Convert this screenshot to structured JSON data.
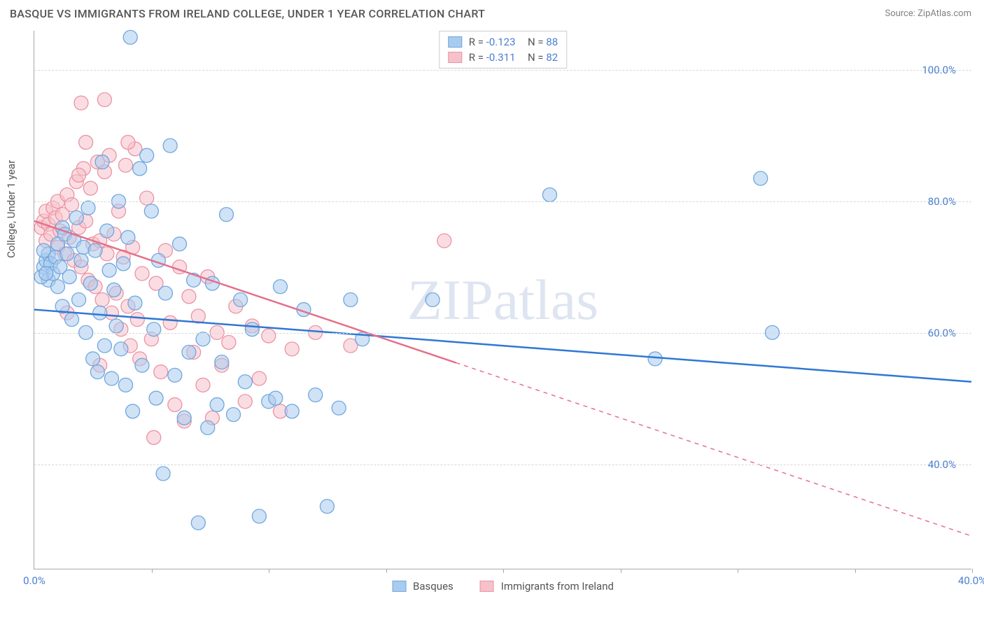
{
  "header": {
    "title": "BASQUE VS IMMIGRANTS FROM IRELAND COLLEGE, UNDER 1 YEAR CORRELATION CHART",
    "source": "Source: ZipAtlas.com"
  },
  "watermark": {
    "zip": "ZIP",
    "atlas": "atlas"
  },
  "axes": {
    "ylabel": "College, Under 1 year",
    "xlim": [
      0,
      40
    ],
    "ylim": [
      24,
      106
    ],
    "yticks": [
      {
        "v": 40,
        "label": "40.0%"
      },
      {
        "v": 60,
        "label": "60.0%"
      },
      {
        "v": 80,
        "label": "80.0%"
      },
      {
        "v": 100,
        "label": "100.0%"
      }
    ],
    "xtick_positions": [
      0,
      5,
      10,
      15,
      20,
      25,
      30,
      35,
      40
    ],
    "xtick_labels": [
      {
        "v": 0,
        "label": "0.0%"
      },
      {
        "v": 40,
        "label": "40.0%"
      }
    ],
    "grid_color": "#d8d8d8",
    "axis_color": "#a8a8a8"
  },
  "series": {
    "basques": {
      "name": "Basques",
      "color_fill": "#a9cbee",
      "color_stroke": "#6fa7dd",
      "line_color": "#2f78d4",
      "marker_r": 10,
      "marker_opacity": 0.55,
      "R": "-0.123",
      "N": "88",
      "trend": {
        "x1": 0,
        "y1": 63.5,
        "x2": 40,
        "y2": 52.5,
        "solid_until_x": 40
      },
      "points": [
        [
          0.4,
          70
        ],
        [
          0.5,
          71
        ],
        [
          0.6,
          72
        ],
        [
          0.6,
          68
        ],
        [
          0.7,
          70.5
        ],
        [
          0.8,
          69
        ],
        [
          0.9,
          71.5
        ],
        [
          1.0,
          67
        ],
        [
          1.0,
          73.5
        ],
        [
          1.1,
          70
        ],
        [
          1.2,
          76
        ],
        [
          1.2,
          64
        ],
        [
          1.3,
          75
        ],
        [
          1.4,
          72
        ],
        [
          1.5,
          68.5
        ],
        [
          1.6,
          62
        ],
        [
          1.7,
          74
        ],
        [
          1.8,
          77.5
        ],
        [
          1.9,
          65
        ],
        [
          2.0,
          71
        ],
        [
          2.1,
          73
        ],
        [
          2.2,
          60
        ],
        [
          2.3,
          79
        ],
        [
          2.4,
          67.5
        ],
        [
          2.5,
          56
        ],
        [
          2.6,
          72.5
        ],
        [
          2.7,
          54
        ],
        [
          2.8,
          63
        ],
        [
          2.9,
          86
        ],
        [
          3.0,
          58
        ],
        [
          3.1,
          75.5
        ],
        [
          3.2,
          69.5
        ],
        [
          3.3,
          53
        ],
        [
          3.4,
          66.5
        ],
        [
          3.5,
          61
        ],
        [
          3.6,
          80
        ],
        [
          3.7,
          57.5
        ],
        [
          3.8,
          70.5
        ],
        [
          3.9,
          52
        ],
        [
          4.0,
          74.5
        ],
        [
          4.1,
          105
        ],
        [
          4.2,
          48
        ],
        [
          4.3,
          64.5
        ],
        [
          4.5,
          85
        ],
        [
          4.6,
          55
        ],
        [
          4.8,
          87
        ],
        [
          5.0,
          78.5
        ],
        [
          5.1,
          60.5
        ],
        [
          5.2,
          50
        ],
        [
          5.3,
          71
        ],
        [
          5.5,
          38.5
        ],
        [
          5.6,
          66
        ],
        [
          5.8,
          88.5
        ],
        [
          6.0,
          53.5
        ],
        [
          6.2,
          73.5
        ],
        [
          6.4,
          47
        ],
        [
          6.6,
          57
        ],
        [
          6.8,
          68
        ],
        [
          7.0,
          31
        ],
        [
          7.2,
          59
        ],
        [
          7.4,
          45.5
        ],
        [
          7.6,
          67.5
        ],
        [
          7.8,
          49
        ],
        [
          8.0,
          55.5
        ],
        [
          8.2,
          78
        ],
        [
          8.5,
          47.5
        ],
        [
          8.8,
          65
        ],
        [
          9.0,
          52.5
        ],
        [
          9.3,
          60.5
        ],
        [
          9.6,
          32
        ],
        [
          10.0,
          49.5
        ],
        [
          10.3,
          50
        ],
        [
          10.5,
          67
        ],
        [
          11.0,
          48
        ],
        [
          11.5,
          63.5
        ],
        [
          12.0,
          50.5
        ],
        [
          12.5,
          33.5
        ],
        [
          13.0,
          48.5
        ],
        [
          13.5,
          65
        ],
        [
          14.0,
          59
        ],
        [
          17.0,
          65
        ],
        [
          22.0,
          81
        ],
        [
          26.5,
          56
        ],
        [
          31.0,
          83.5
        ],
        [
          31.5,
          60
        ],
        [
          0.3,
          68.5
        ],
        [
          0.4,
          72.5
        ],
        [
          0.5,
          69
        ]
      ]
    },
    "ireland": {
      "name": "Immigrants from Ireland",
      "color_fill": "#f6c1cb",
      "color_stroke": "#ec92a3",
      "line_color": "#e57089",
      "marker_r": 10,
      "marker_opacity": 0.55,
      "R": "-0.311",
      "N": "82",
      "trend": {
        "x1": 0,
        "y1": 77,
        "x2": 40,
        "y2": 29,
        "solid_until_x": 18
      },
      "points": [
        [
          0.3,
          76
        ],
        [
          0.4,
          77
        ],
        [
          0.5,
          78.5
        ],
        [
          0.5,
          74
        ],
        [
          0.6,
          76.5
        ],
        [
          0.7,
          75
        ],
        [
          0.8,
          79
        ],
        [
          0.9,
          77.5
        ],
        [
          1.0,
          73
        ],
        [
          1.0,
          80
        ],
        [
          1.1,
          75.5
        ],
        [
          1.2,
          78
        ],
        [
          1.3,
          72
        ],
        [
          1.4,
          81
        ],
        [
          1.5,
          74.5
        ],
        [
          1.6,
          79.5
        ],
        [
          1.7,
          71
        ],
        [
          1.8,
          83
        ],
        [
          1.9,
          76
        ],
        [
          2.0,
          70
        ],
        [
          2.1,
          85
        ],
        [
          2.2,
          77
        ],
        [
          2.3,
          68
        ],
        [
          2.4,
          82
        ],
        [
          2.5,
          73.5
        ],
        [
          2.6,
          67
        ],
        [
          2.7,
          86
        ],
        [
          2.8,
          74
        ],
        [
          2.9,
          65
        ],
        [
          3.0,
          84.5
        ],
        [
          3.1,
          72
        ],
        [
          3.2,
          87
        ],
        [
          3.3,
          63
        ],
        [
          3.4,
          75
        ],
        [
          3.5,
          66
        ],
        [
          3.6,
          78.5
        ],
        [
          3.7,
          60.5
        ],
        [
          3.8,
          71.5
        ],
        [
          3.9,
          85.5
        ],
        [
          4.0,
          64
        ],
        [
          4.1,
          58
        ],
        [
          4.2,
          73
        ],
        [
          4.3,
          88
        ],
        [
          4.4,
          62
        ],
        [
          4.5,
          56
        ],
        [
          4.6,
          69
        ],
        [
          4.8,
          80.5
        ],
        [
          5.0,
          59
        ],
        [
          5.1,
          44
        ],
        [
          5.2,
          67.5
        ],
        [
          5.4,
          54
        ],
        [
          5.6,
          72.5
        ],
        [
          5.8,
          61.5
        ],
        [
          6.0,
          49
        ],
        [
          6.2,
          70
        ],
        [
          6.4,
          46.5
        ],
        [
          6.6,
          65.5
        ],
        [
          6.8,
          57
        ],
        [
          7.0,
          62.5
        ],
        [
          7.2,
          52
        ],
        [
          7.4,
          68.5
        ],
        [
          7.6,
          47
        ],
        [
          7.8,
          60
        ],
        [
          8.0,
          55
        ],
        [
          8.3,
          58.5
        ],
        [
          8.6,
          64
        ],
        [
          9.0,
          49.5
        ],
        [
          9.3,
          61
        ],
        [
          9.6,
          53
        ],
        [
          10.0,
          59.5
        ],
        [
          10.5,
          48
        ],
        [
          11.0,
          57.5
        ],
        [
          12.0,
          60
        ],
        [
          13.5,
          58
        ],
        [
          17.5,
          74
        ],
        [
          2.0,
          95
        ],
        [
          3.0,
          95.5
        ],
        [
          2.8,
          55
        ],
        [
          1.4,
          63
        ],
        [
          2.2,
          89
        ],
        [
          1.9,
          84
        ],
        [
          4.0,
          89
        ]
      ]
    }
  },
  "legend_bottom": {
    "item1": "Basques",
    "item2": "Immigrants from Ireland"
  },
  "label_fontsize": 15,
  "title_fontsize": 16,
  "background_color": "#ffffff"
}
